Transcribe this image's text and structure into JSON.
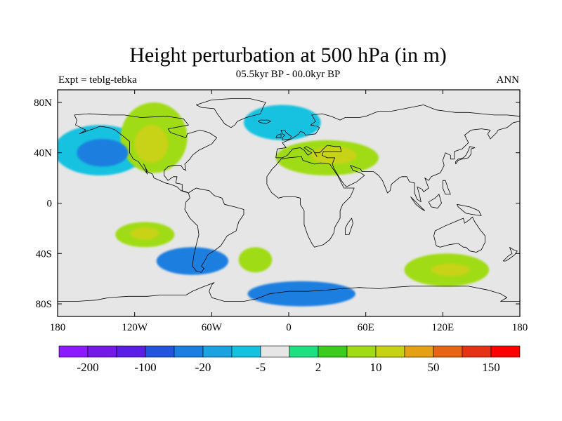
{
  "figure": {
    "title": "Height perturbation at 500 hPa (in m)",
    "subtitle_center": "05.5kyr BP - 00.0kyr BP",
    "subtitle_left": "Expt = teblg-tebka",
    "subtitle_right": "ANN",
    "variable": "Height perturbation",
    "units": "m"
  },
  "map": {
    "projection": "cylindrical-equidistant",
    "lon_range": [
      -180,
      180
    ],
    "lat_range": [
      -90,
      90
    ],
    "lon_ticks": [
      {
        "value": -180,
        "label": "180"
      },
      {
        "value": -120,
        "label": "120W"
      },
      {
        "value": -60,
        "label": "60W"
      },
      {
        "value": 0,
        "label": "0"
      },
      {
        "value": 60,
        "label": "60E"
      },
      {
        "value": 120,
        "label": "120E"
      },
      {
        "value": 180,
        "label": "180"
      }
    ],
    "lat_ticks": [
      {
        "value": 80,
        "label": "80N"
      },
      {
        "value": 40,
        "label": "40N"
      },
      {
        "value": 0,
        "label": "0"
      },
      {
        "value": -40,
        "label": "40S"
      },
      {
        "value": -80,
        "label": "80S"
      }
    ],
    "background_color": "#e6e6e6",
    "coastline_color": "#000000"
  },
  "colorbar": {
    "colors": [
      "#8c1aff",
      "#7519e6",
      "#5a1ee6",
      "#2255dd",
      "#1a7fe0",
      "#1aa3e0",
      "#14c2e0",
      "#e6e6e6",
      "#1ee080",
      "#3ccc1e",
      "#a0dc14",
      "#c8d214",
      "#e6a014",
      "#e66414",
      "#e63214",
      "#ff0000"
    ],
    "labels": [
      {
        "after_box": 1,
        "text": "-200"
      },
      {
        "after_box": 3,
        "text": "-100"
      },
      {
        "after_box": 5,
        "text": "-20"
      },
      {
        "after_box": 7,
        "text": "-5"
      },
      {
        "after_box": 9,
        "text": "2"
      },
      {
        "after_box": 11,
        "text": "10"
      },
      {
        "after_box": 13,
        "text": "50"
      },
      {
        "after_box": 15,
        "text": "150"
      }
    ]
  },
  "anomalies": [
    {
      "name": "ne-pacific-low",
      "lon": -145,
      "lat": 40,
      "rlon": 20,
      "rlat": 11,
      "level": "-20"
    },
    {
      "name": "ne-pacific-low-ring",
      "lon": -147,
      "lat": 42,
      "rlon": 36,
      "rlat": 20,
      "level": "-5"
    },
    {
      "name": "north-america-high",
      "lon": -105,
      "lat": 52,
      "rlon": 26,
      "rlat": 28,
      "level": "10"
    },
    {
      "name": "north-america-high-core",
      "lon": -107,
      "lat": 47,
      "rlon": 13,
      "rlat": 15,
      "level": "50"
    },
    {
      "name": "eurasia-high",
      "lon": 30,
      "lat": 36,
      "rlon": 40,
      "rlat": 14,
      "level": "10"
    },
    {
      "name": "eurasia-high-core",
      "lon": 35,
      "lat": 38,
      "rlon": 18,
      "rlat": 7,
      "level": "50"
    },
    {
      "name": "north-atlantic-low",
      "lon": -5,
      "lat": 64,
      "rlon": 30,
      "rlat": 14,
      "level": "-5"
    },
    {
      "name": "south-pacific-high",
      "lon": -112,
      "lat": -25,
      "rlon": 23,
      "rlat": 10,
      "level": "10"
    },
    {
      "name": "south-pacific-high-core",
      "lon": -112,
      "lat": -24,
      "rlon": 11,
      "rlat": 5,
      "level": "50"
    },
    {
      "name": "south-america-low",
      "lon": -75,
      "lat": -46,
      "rlon": 28,
      "rlat": 11,
      "level": "-20"
    },
    {
      "name": "south-atlantic-high",
      "lon": -26,
      "lat": -45,
      "rlon": 13,
      "rlat": 10,
      "level": "10"
    },
    {
      "name": "australia-high",
      "lon": 123,
      "lat": -53,
      "rlon": 33,
      "rlat": 13,
      "level": "10"
    },
    {
      "name": "australia-high-core",
      "lon": 126,
      "lat": -53,
      "rlon": 15,
      "rlat": 5,
      "level": "50"
    },
    {
      "name": "antarctic-low",
      "lon": 10,
      "lat": -72,
      "rlon": 42,
      "rlat": 10,
      "level": "-20"
    }
  ]
}
